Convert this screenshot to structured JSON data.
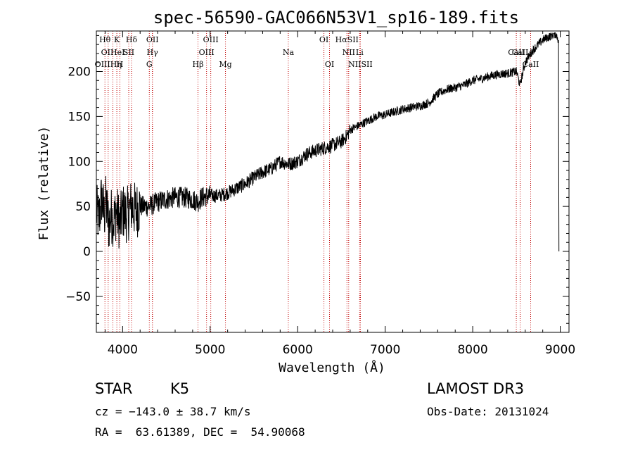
{
  "chart_data": {
    "type": "line",
    "title": "spec-56590-GAC066N53V1_sp16-189.fits",
    "xlabel": "Wavelength (Å)",
    "ylabel": "Flux (relative)",
    "xlim": [
      3700,
      9100
    ],
    "ylim": [
      -90,
      245
    ],
    "xticks": [
      4000,
      5000,
      6000,
      7000,
      8000,
      9000
    ],
    "yticks": [
      -50,
      0,
      50,
      100,
      150,
      200
    ],
    "series": [
      {
        "name": "flux",
        "color": "#000000",
        "x": [
          3700,
          3730,
          3760,
          3790,
          3810,
          3840,
          3870,
          3900,
          3930,
          3970,
          4000,
          4050,
          4100,
          4150,
          4200,
          4300,
          4400,
          4500,
          4600,
          4700,
          4800,
          4860,
          4900,
          5000,
          5100,
          5200,
          5300,
          5400,
          5500,
          5600,
          5700,
          5800,
          5900,
          6000,
          6100,
          6200,
          6300,
          6400,
          6500,
          6560,
          6600,
          6700,
          6800,
          6900,
          7000,
          7100,
          7200,
          7300,
          7400,
          7500,
          7600,
          7700,
          7800,
          7900,
          8000,
          8100,
          8200,
          8300,
          8400,
          8500,
          8540,
          8600,
          8660,
          8700,
          8800,
          8900,
          8950,
          8980
        ],
        "y": [
          45,
          35,
          60,
          40,
          55,
          30,
          40,
          35,
          45,
          30,
          45,
          40,
          50,
          45,
          50,
          50,
          55,
          58,
          60,
          60,
          58,
          55,
          60,
          62,
          62,
          65,
          70,
          75,
          82,
          88,
          92,
          100,
          97,
          100,
          108,
          112,
          115,
          118,
          122,
          128,
          135,
          140,
          145,
          150,
          152,
          155,
          158,
          160,
          162,
          165,
          175,
          180,
          182,
          185,
          190,
          192,
          195,
          197,
          198,
          200,
          185,
          210,
          220,
          225,
          235,
          240,
          242,
          235
        ]
      }
    ],
    "lines": [
      {
        "label": "Hθ",
        "x": 3798,
        "row": 0
      },
      {
        "label": "K",
        "x": 3934,
        "row": 0
      },
      {
        "label": "Hδ",
        "x": 4102,
        "row": 0
      },
      {
        "label": "OII",
        "x": 4341,
        "row": 0
      },
      {
        "label": "OIII",
        "x": 5007,
        "row": 0
      },
      {
        "label": "OI",
        "x": 6300,
        "row": 0
      },
      {
        "label": "HαSII",
        "x": 6563,
        "row": 0
      },
      {
        "label": "CaII",
        "x": 8498,
        "row": 1
      },
      {
        "label": "OIHeI",
        "x": 3889,
        "row": 1
      },
      {
        "label": "SII",
        "x": 4070,
        "row": 1
      },
      {
        "label": "Hγ",
        "x": 4340,
        "row": 1
      },
      {
        "label": "OIII",
        "x": 4959,
        "row": 1
      },
      {
        "label": "Na",
        "x": 5893,
        "row": 1
      },
      {
        "label": "NII",
        "x": 6583,
        "row": 1
      },
      {
        "label": "Li",
        "x": 6708,
        "row": 1
      },
      {
        "label": "CaII",
        "x": 8542,
        "row": 1
      },
      {
        "label": "OIIIHη",
        "x": 3835,
        "row": 2
      },
      {
        "label": "H",
        "x": 3969,
        "row": 2
      },
      {
        "label": "G",
        "x": 4305,
        "row": 2
      },
      {
        "label": "Hβ",
        "x": 4861,
        "row": 2
      },
      {
        "label": "Mg",
        "x": 5175,
        "row": 2
      },
      {
        "label": "OI",
        "x": 6364,
        "row": 2
      },
      {
        "label": "NIISII",
        "x": 6717,
        "row": 2
      },
      {
        "label": "CaII",
        "x": 8662,
        "row": 2
      }
    ]
  },
  "info": {
    "class_label": "STAR",
    "subclass": "K5",
    "survey": "LAMOST DR3",
    "cz": "cz = −143.0 ± 38.7 km/s",
    "obs_date": "Obs-Date: 20131024",
    "coords": "RA =  63.61389, DEC =  54.90068"
  }
}
